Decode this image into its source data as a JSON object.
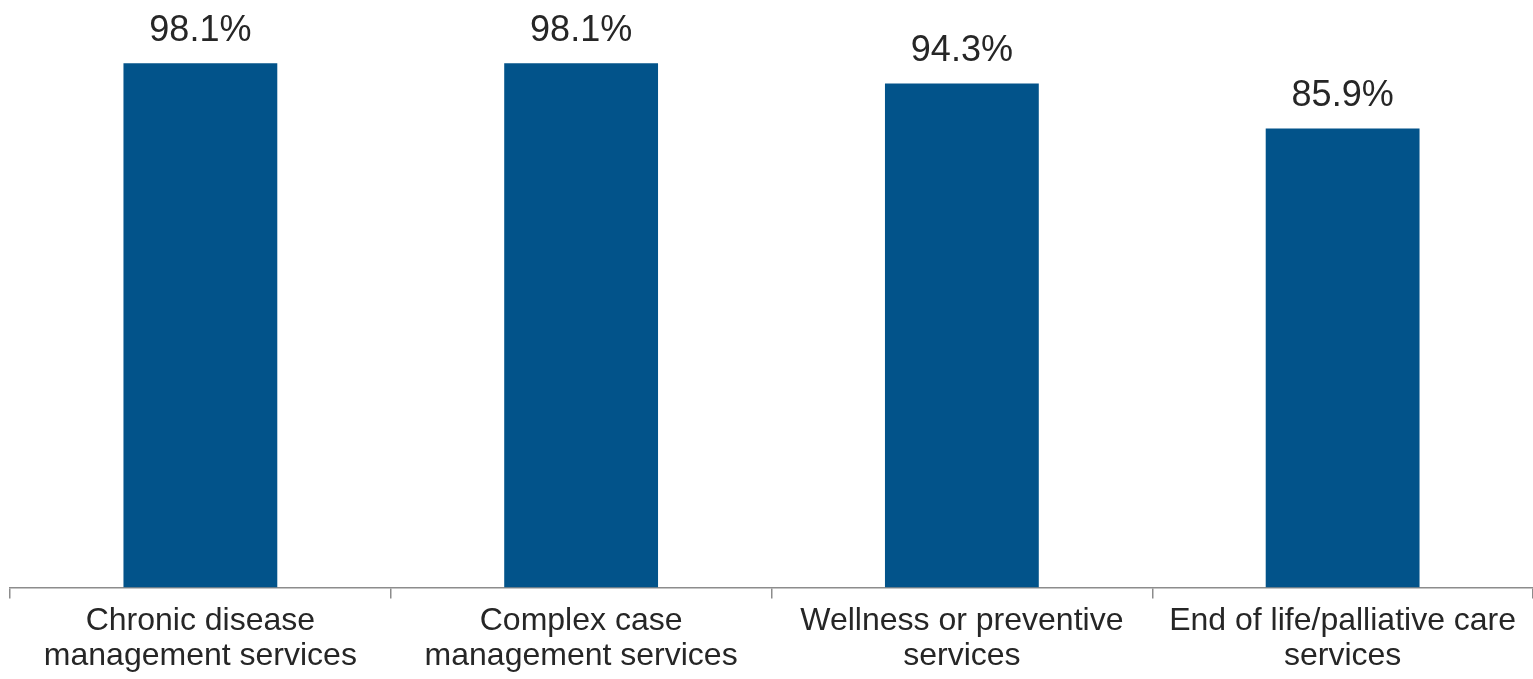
{
  "chart_data": {
    "type": "bar",
    "categories": [
      "Chronic disease management services",
      "Complex case management services",
      "Wellness or preventive services",
      "End of life/palliative care services"
    ],
    "values": [
      98.1,
      98.1,
      94.3,
      85.9
    ],
    "value_labels": [
      "98.1%",
      "98.1%",
      "94.3%",
      "85.9%"
    ],
    "color": "#02538a"
  }
}
